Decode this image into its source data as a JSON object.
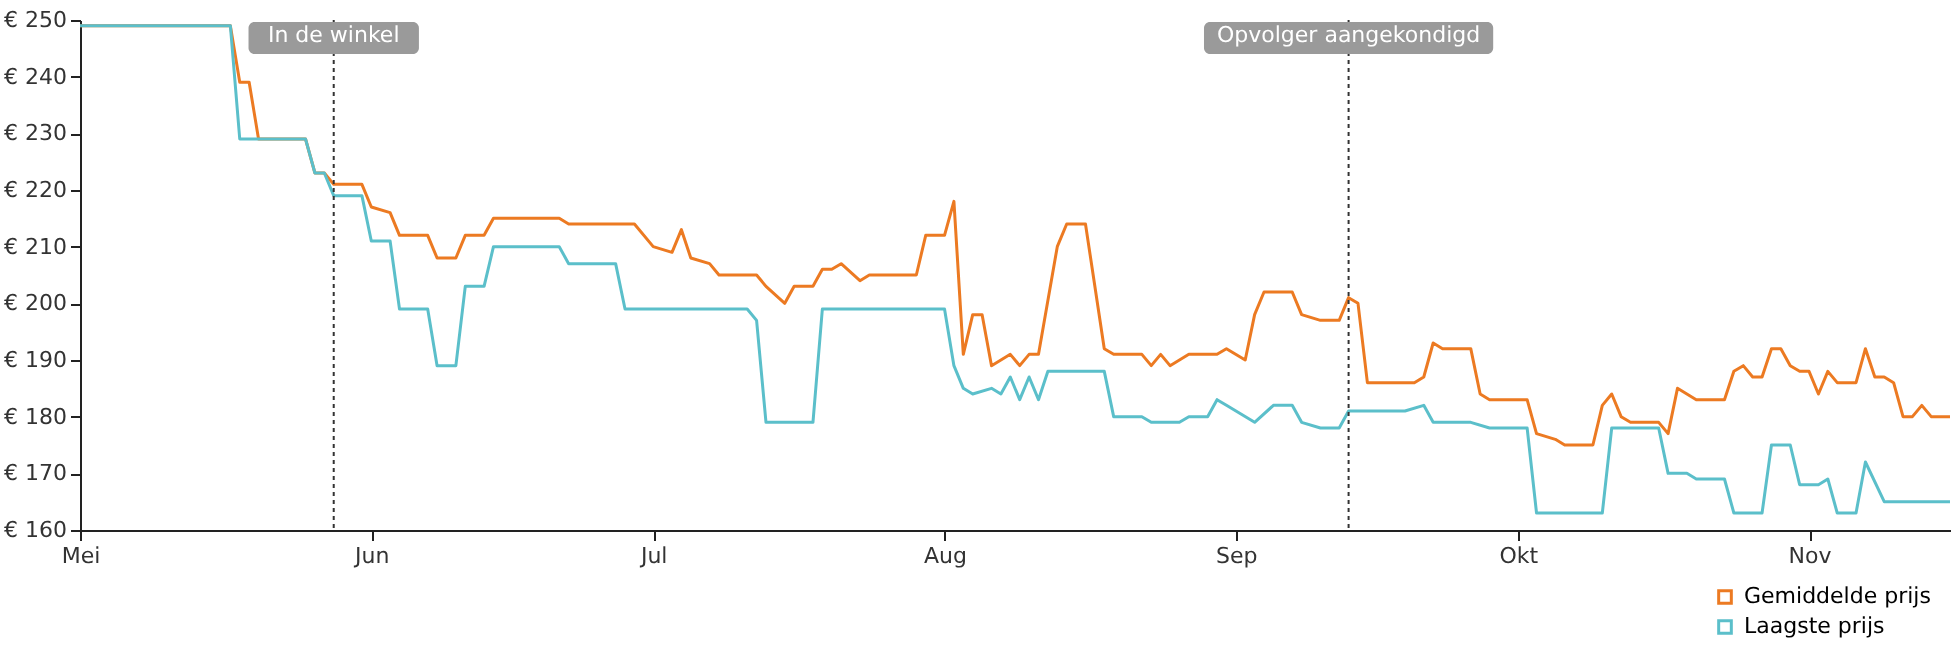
{
  "chart_data": {
    "type": "line",
    "series": [
      {
        "name": "Gemiddelde prijs",
        "color": "#ec7a22",
        "x": [
          "--05-01",
          "--05-17",
          "--05-18",
          "--05-19",
          "--05-20",
          "--05-25",
          "--05-26",
          "--05-27",
          "--05-28",
          "--05-31",
          "--06-01",
          "--06-03",
          "--06-04",
          "--06-07",
          "--06-08",
          "--06-10",
          "--06-11",
          "--06-13",
          "--06-14",
          "--06-21",
          "--06-22",
          "--06-29",
          "--07-01",
          "--07-03",
          "--07-04",
          "--07-05",
          "--07-07",
          "--07-08",
          "--07-12",
          "--07-13",
          "--07-15",
          "--07-16",
          "--07-18",
          "--07-19",
          "--07-20",
          "--07-21",
          "--07-23",
          "--07-24",
          "--07-29",
          "--07-30",
          "--08-01",
          "--08-02",
          "--08-03",
          "--08-04",
          "--08-05",
          "--08-06",
          "--08-08",
          "--08-09",
          "--08-10",
          "--08-11",
          "--08-13",
          "--08-14",
          "--08-16",
          "--08-18",
          "--08-19",
          "--08-22",
          "--08-23",
          "--08-24",
          "--08-25",
          "--08-27",
          "--08-30",
          "--08-31",
          "--09-02",
          "--09-03",
          "--09-04",
          "--09-07",
          "--09-08",
          "--09-10",
          "--09-12",
          "--09-13",
          "--09-14",
          "--09-15",
          "--09-20",
          "--09-21",
          "--09-22",
          "--09-23",
          "--09-26",
          "--09-27",
          "--09-28",
          "--10-02",
          "--10-03",
          "--10-05",
          "--10-06",
          "--10-09",
          "--10-10",
          "--10-11",
          "--10-12",
          "--10-13",
          "--10-16",
          "--10-17",
          "--10-18",
          "--10-20",
          "--10-23",
          "--10-24",
          "--10-25",
          "--10-26",
          "--10-27",
          "--10-28",
          "--10-29",
          "--10-30",
          "--10-31",
          "--11-01",
          "--11-02",
          "--11-03",
          "--11-04",
          "--11-06",
          "--11-07",
          "--11-08",
          "--11-09",
          "--11-10",
          "--11-11",
          "--11-12",
          "--11-13",
          "--11-14",
          "--11-16"
        ],
        "values": [
          249,
          249,
          239,
          239,
          229,
          229,
          223,
          223,
          221,
          221,
          217,
          216,
          212,
          212,
          208,
          208,
          212,
          212,
          215,
          215,
          214,
          214,
          210,
          209,
          213,
          208,
          207,
          205,
          205,
          203,
          200,
          203,
          203,
          206,
          206,
          207,
          204,
          205,
          205,
          212,
          212,
          218,
          191,
          198,
          198,
          189,
          191,
          189,
          191,
          191,
          210,
          214,
          214,
          192,
          191,
          191,
          189,
          191,
          189,
          191,
          191,
          192,
          190,
          198,
          202,
          202,
          198,
          197,
          197,
          201,
          200,
          186,
          186,
          187,
          193,
          192,
          192,
          184,
          183,
          183,
          177,
          176,
          175,
          175,
          182,
          184,
          180,
          179,
          179,
          177,
          185,
          183,
          183,
          188,
          189,
          187,
          187,
          192,
          192,
          189,
          188,
          188,
          184,
          188,
          186,
          186,
          192,
          187,
          187,
          186,
          180,
          180,
          182,
          180,
          180
        ]
      },
      {
        "name": "Laagste prijs",
        "color": "#5bbfca",
        "x": [
          "--05-01",
          "--05-17",
          "--05-18",
          "--05-25",
          "--05-26",
          "--05-27",
          "--05-28",
          "--05-31",
          "--06-01",
          "--06-03",
          "--06-04",
          "--06-07",
          "--06-08",
          "--06-10",
          "--06-11",
          "--06-13",
          "--06-14",
          "--06-21",
          "--06-22",
          "--06-27",
          "--06-28",
          "--07-11",
          "--07-12",
          "--07-13",
          "--07-18",
          "--07-19",
          "--08-01",
          "--08-02",
          "--08-03",
          "--08-04",
          "--08-06",
          "--08-07",
          "--08-08",
          "--08-09",
          "--08-10",
          "--08-11",
          "--08-12",
          "--08-18",
          "--08-19",
          "--08-22",
          "--08-23",
          "--08-26",
          "--08-27",
          "--08-29",
          "--08-30",
          "--08-31",
          "--09-03",
          "--09-05",
          "--09-07",
          "--09-08",
          "--09-10",
          "--09-12",
          "--09-13",
          "--09-19",
          "--09-21",
          "--09-22",
          "--09-26",
          "--09-28",
          "--10-02",
          "--10-03",
          "--10-10",
          "--10-11",
          "--10-16",
          "--10-17",
          "--10-19",
          "--10-20",
          "--10-23",
          "--10-24",
          "--10-27",
          "--10-28",
          "--10-30",
          "--10-31",
          "--11-02",
          "--11-03",
          "--11-04",
          "--11-06",
          "--11-07",
          "--11-09",
          "--11-16"
        ],
        "values": [
          249,
          249,
          229,
          229,
          223,
          223,
          219,
          219,
          211,
          211,
          199,
          199,
          189,
          189,
          203,
          203,
          210,
          210,
          207,
          207,
          199,
          199,
          197,
          179,
          179,
          199,
          199,
          189,
          185,
          184,
          185,
          184,
          187,
          183,
          187,
          183,
          188,
          188,
          180,
          180,
          179,
          179,
          180,
          180,
          183,
          182,
          179,
          182,
          182,
          179,
          178,
          178,
          181,
          181,
          182,
          179,
          179,
          178,
          178,
          163,
          163,
          178,
          178,
          170,
          170,
          169,
          169,
          163,
          163,
          175,
          175,
          168,
          168,
          169,
          163,
          163,
          172,
          165,
          165
        ]
      }
    ],
    "xlim": [
      "--05-01",
      "--11-16"
    ],
    "xticks": [
      {
        "value": "--05-01",
        "label": "Mei"
      },
      {
        "value": "--06-01",
        "label": "Jun"
      },
      {
        "value": "--07-01",
        "label": "Jul"
      },
      {
        "value": "--08-01",
        "label": "Aug"
      },
      {
        "value": "--09-01",
        "label": "Sep"
      },
      {
        "value": "--10-01",
        "label": "Okt"
      },
      {
        "value": "--11-01",
        "label": "Nov"
      }
    ],
    "ylim": [
      160,
      250
    ],
    "yticks": [
      {
        "value": 160,
        "label": "€ 160"
      },
      {
        "value": 170,
        "label": "€ 170"
      },
      {
        "value": 180,
        "label": "€ 180"
      },
      {
        "value": 190,
        "label": "€ 190"
      },
      {
        "value": 200,
        "label": "€ 200"
      },
      {
        "value": 210,
        "label": "€ 210"
      },
      {
        "value": 220,
        "label": "€ 220"
      },
      {
        "value": 230,
        "label": "€ 230"
      },
      {
        "value": 240,
        "label": "€ 240"
      },
      {
        "value": 250,
        "label": "€ 250"
      }
    ],
    "ref_lines": [
      {
        "axis": "x",
        "value": "--05-28",
        "label": "In de winkel",
        "line_style": "dotted"
      },
      {
        "axis": "x",
        "value": "--09-13",
        "label": "Opvolger aangekondigd",
        "line_style": "dotted"
      }
    ],
    "legend": "bottom right",
    "grid": false,
    "marker": "none",
    "line_style": "solid"
  }
}
